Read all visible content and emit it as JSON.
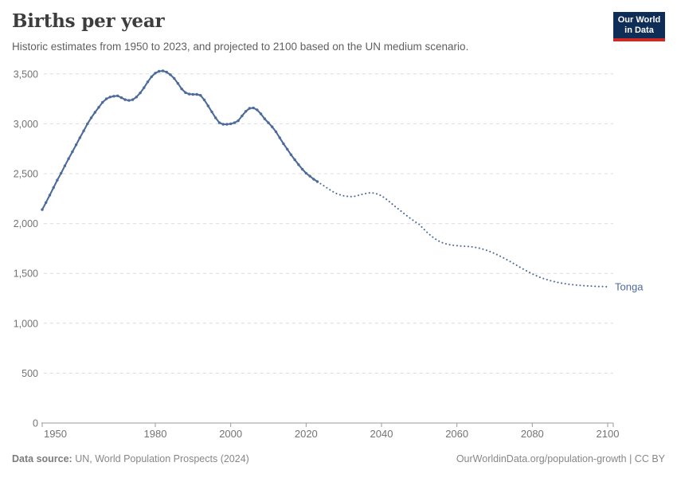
{
  "header": {
    "title": "Births per year",
    "subtitle": "Historic estimates from 1950 to 2023, and projected to 2100 based on the UN medium scenario.",
    "logo": {
      "line1": "Our World",
      "line2": "in Data",
      "bg_color": "#0e2d57",
      "bar_color": "#cc2a25"
    }
  },
  "footer": {
    "source_label": "Data source:",
    "source_text": " UN, World Population Prospects (2024)",
    "credit_text": "OurWorldinData.org/population-growth | CC BY"
  },
  "chart_data": {
    "type": "line",
    "title": "Births per year",
    "entity_label": "Tonga",
    "legend_position": "end-of-line",
    "grid": true,
    "xlabel": "",
    "ylabel": "",
    "ylim": [
      0,
      3500
    ],
    "xlim": [
      1950,
      2104
    ],
    "yticks": [
      0,
      500,
      1000,
      1500,
      2000,
      2500,
      3000,
      3500
    ],
    "xticks": [
      1950,
      1980,
      2000,
      2020,
      2040,
      2060,
      2080,
      2100
    ],
    "colors": {
      "line": "#4C6A9C",
      "entity_label": "#4C6A9C",
      "grid": "#dcdcdc",
      "axis": "#9a9a9a",
      "tick_text": "#737373"
    },
    "series": [
      {
        "name": "Tonga (historic estimates, solid with markers)",
        "style": "solid-markers",
        "start_year": 1950,
        "values": [
          2140,
          2210,
          2285,
          2360,
          2435,
          2505,
          2578,
          2650,
          2720,
          2790,
          2860,
          2930,
          3000,
          3060,
          3115,
          3165,
          3215,
          3250,
          3268,
          3276,
          3280,
          3262,
          3242,
          3234,
          3242,
          3268,
          3310,
          3362,
          3420,
          3472,
          3508,
          3526,
          3530,
          3518,
          3492,
          3455,
          3405,
          3350,
          3312,
          3298,
          3295,
          3295,
          3285,
          3240,
          3180,
          3120,
          3060,
          3010,
          2995,
          2995,
          3000,
          3010,
          3030,
          3080,
          3125,
          3155,
          3160,
          3140,
          3100,
          3050,
          3010,
          2970,
          2920,
          2860,
          2800,
          2745,
          2690,
          2640,
          2590,
          2545,
          2505,
          2475,
          2445,
          2420
        ]
      },
      {
        "name": "Tonga (UN medium scenario projection, dotted)",
        "style": "dotted",
        "start_year": 2023,
        "values": [
          2420,
          2395,
          2372,
          2346,
          2322,
          2302,
          2288,
          2278,
          2272,
          2270,
          2274,
          2284,
          2295,
          2303,
          2308,
          2305,
          2295,
          2278,
          2252,
          2222,
          2190,
          2160,
          2130,
          2100,
          2070,
          2042,
          2016,
          1992,
          1952,
          1915,
          1882,
          1852,
          1828,
          1810,
          1797,
          1788,
          1782,
          1778,
          1775,
          1772,
          1770,
          1766,
          1760,
          1752,
          1742,
          1730,
          1716,
          1700,
          1682,
          1663,
          1643,
          1622,
          1600,
          1578,
          1556,
          1535,
          1515,
          1496,
          1478,
          1462,
          1448,
          1436,
          1425,
          1416,
          1408,
          1401,
          1395,
          1390,
          1386,
          1382,
          1379,
          1376,
          1374,
          1372,
          1370,
          1369,
          1368,
          1367
        ]
      }
    ]
  }
}
